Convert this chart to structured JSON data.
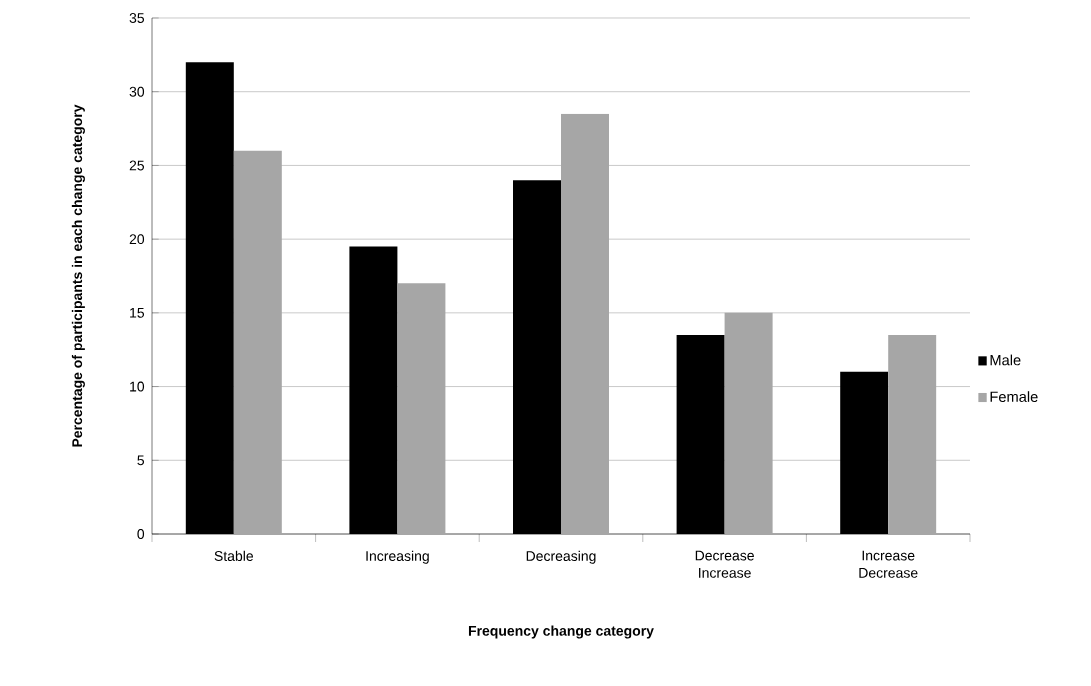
{
  "chart_data": {
    "type": "bar",
    "xlabel": "Frequency change category",
    "ylabel": "Percentage of participants in each change category",
    "categories": [
      "Stable",
      "Increasing",
      "Decreasing",
      "Decrease Increase",
      "Increase Decrease"
    ],
    "series": [
      {
        "name": "Male",
        "color": "#000000",
        "values": [
          32,
          19.5,
          24,
          13.5,
          11
        ]
      },
      {
        "name": "Female",
        "color": "#a6a6a6",
        "values": [
          26,
          17,
          28.5,
          15,
          13.5
        ]
      }
    ],
    "ylim": [
      0,
      35
    ],
    "yticks": [
      0,
      5,
      10,
      15,
      20,
      25,
      30,
      35
    ],
    "grid": "y",
    "legend": "right"
  }
}
